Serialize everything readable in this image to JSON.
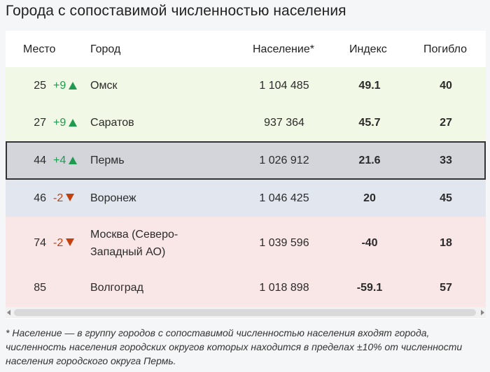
{
  "title": "Города с сопоставимой численностью населения",
  "columns": {
    "place": "Место",
    "city": "Город",
    "population": "Население*",
    "index": "Индекс",
    "deaths": "Погибло"
  },
  "rows": [
    {
      "place": "25",
      "change": "+9",
      "direction": "up",
      "city": "Омск",
      "population": "1 104 485",
      "index": "49.1",
      "deaths": "40",
      "bg": "#f1f8e6"
    },
    {
      "place": "27",
      "change": "+9",
      "direction": "up",
      "city": "Саратов",
      "population": "937 364",
      "index": "45.7",
      "deaths": "27",
      "bg": "#f1f8e6"
    },
    {
      "place": "44",
      "change": "+4",
      "direction": "up",
      "city": "Пермь",
      "population": "1 026 912",
      "index": "21.6",
      "deaths": "33",
      "bg": "#d3d5db"
    },
    {
      "place": "46",
      "change": "-2",
      "direction": "down",
      "city": "Воронеж",
      "population": "1 046 425",
      "index": "20",
      "deaths": "45",
      "bg": "#e1e6ef"
    },
    {
      "place": "74",
      "change": "-2",
      "direction": "down",
      "city": "Москва (Северо-Западный АО)",
      "city_line1": "Москва (Северо-",
      "city_line2": "Западный АО)",
      "population": "1 039 596",
      "index": "-40",
      "deaths": "18",
      "bg": "#f9e6e6"
    },
    {
      "place": "85",
      "change": "",
      "direction": "",
      "city": "Волгоград",
      "population": "1 018 898",
      "index": "-59.1",
      "deaths": "57",
      "bg": "#f9e6e6"
    }
  ],
  "footnote": "* Население — в группу городов с сопоставимой численностью населения входят города, численность населения городских округов которых находится в пределах ±10% от численности населения городского округа Пермь.",
  "colors": {
    "up": "#1f9a4e",
    "down": "#c2410c"
  },
  "icons": {
    "up": "triangle-up-icon",
    "down": "triangle-down-icon",
    "scroll_left": "scroll-left-arrow-icon",
    "scroll_right": "scroll-right-arrow-icon"
  }
}
